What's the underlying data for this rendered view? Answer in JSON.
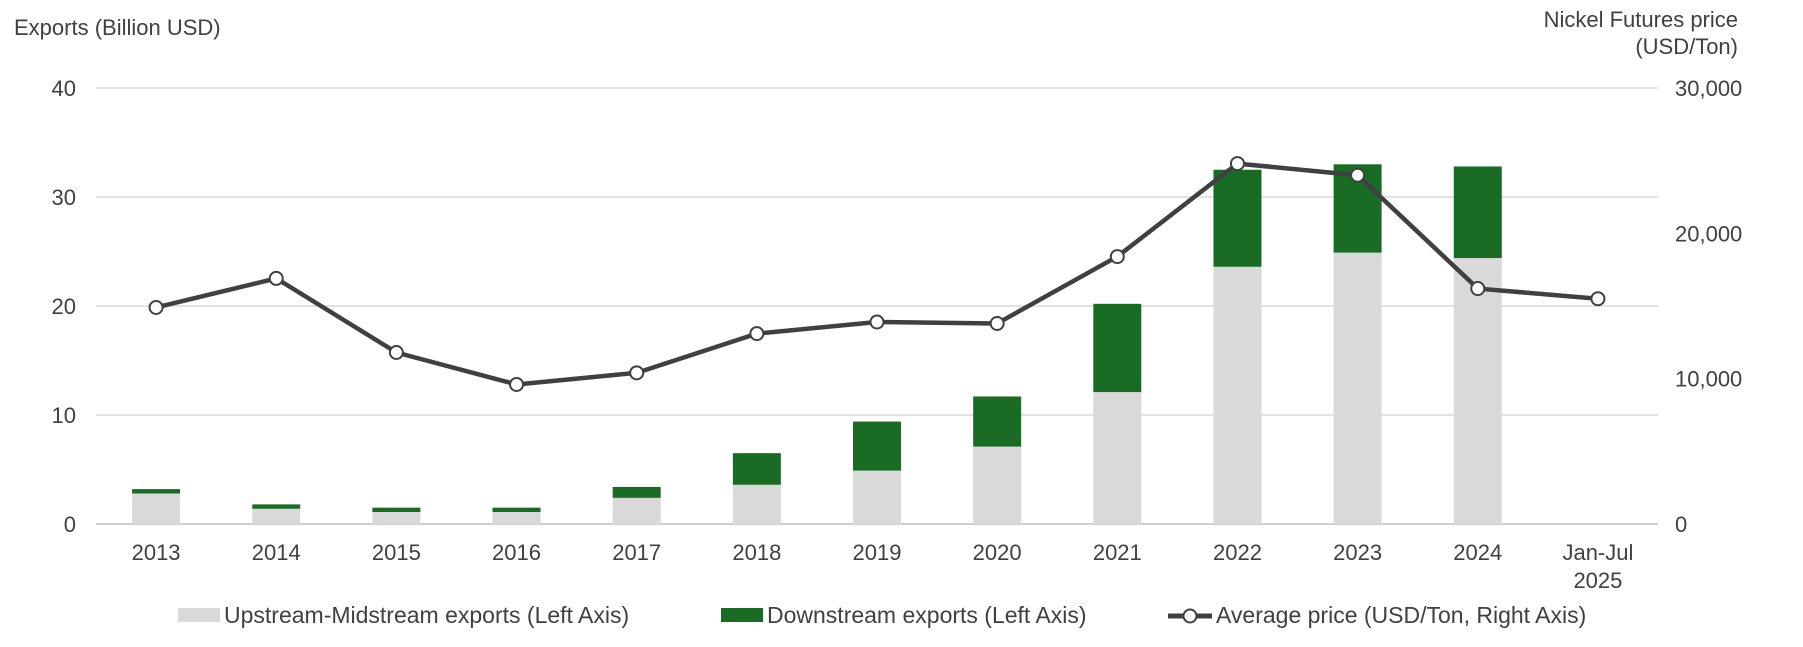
{
  "chart_data": {
    "type": "bar",
    "categories": [
      "2013",
      "2014",
      "2015",
      "2016",
      "2017",
      "2018",
      "2019",
      "2020",
      "2021",
      "2022",
      "2023",
      "2024",
      "Jan-Jul 2025"
    ],
    "series": [
      {
        "name": "Upstream-Midstream exports (Left Axis)",
        "kind": "stacked-bar",
        "axis": "left",
        "color": "#d9d9d9",
        "values": [
          2.8,
          1.4,
          1.1,
          1.1,
          2.4,
          3.6,
          4.9,
          7.1,
          12.1,
          23.6,
          24.9,
          24.4,
          null
        ]
      },
      {
        "name": "Downstream exports (Left Axis)",
        "kind": "stacked-bar",
        "axis": "left",
        "color": "#1a6b24",
        "values": [
          0.4,
          0.4,
          0.4,
          0.4,
          1.0,
          2.9,
          4.5,
          4.6,
          8.1,
          8.9,
          8.1,
          8.4,
          null
        ]
      },
      {
        "name": "Average price (USD/Ton, Right Axis)",
        "kind": "line",
        "axis": "right",
        "color": "#404040",
        "values": [
          14900,
          16900,
          11800,
          9600,
          10400,
          13100,
          13900,
          13800,
          18400,
          24800,
          24000,
          16200,
          15500
        ]
      }
    ],
    "y_left": {
      "label": "Exports (Billion USD)",
      "ylim": [
        0,
        40
      ],
      "ticks": [
        0,
        10,
        20,
        30,
        40
      ],
      "tick_labels": [
        "0",
        "10",
        "20",
        "30",
        "40"
      ]
    },
    "y_right": {
      "label_lines": [
        "Nickel Futures price",
        "(USD/Ton)"
      ],
      "ylim": [
        0,
        30000
      ],
      "ticks": [
        0,
        10000,
        20000,
        30000
      ],
      "tick_labels": [
        "0",
        "10,000",
        "20,000",
        "30,000"
      ]
    },
    "grid": true,
    "legend_position": "bottom",
    "colors": {
      "gridline": "#d9d9d9",
      "axis": "#bfbfbf",
      "text": "#404040"
    }
  }
}
